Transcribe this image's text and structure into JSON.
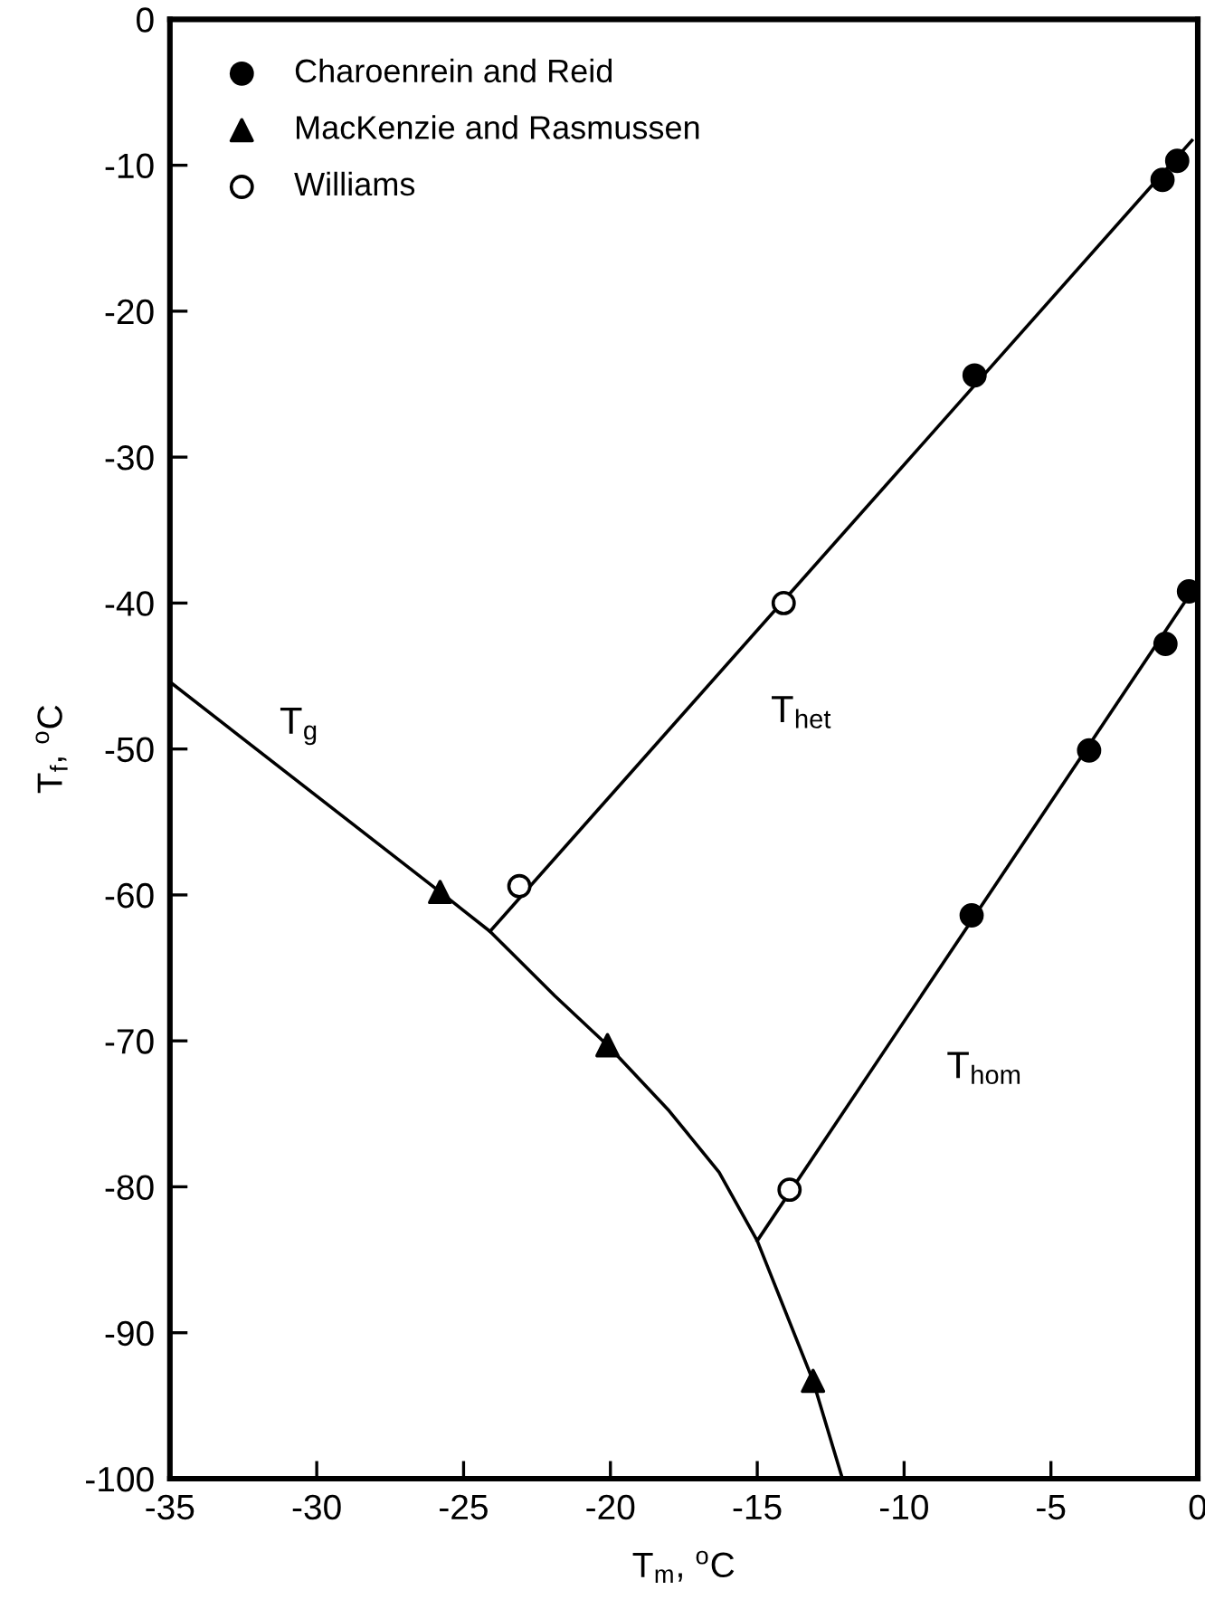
{
  "chart_data": {
    "type": "line",
    "xlabel": "T$_{m}$, $^{o}$C",
    "ylabel": "T$_{f}$, $^{o}$C",
    "xlim": [
      -35,
      0
    ],
    "ylim": [
      -100,
      0
    ],
    "xticks": [
      -35,
      -30,
      -25,
      -20,
      -15,
      -10,
      -5,
      0
    ],
    "yticks": [
      -100,
      -90,
      -80,
      -70,
      -60,
      -50,
      -40,
      -30,
      -20,
      -10,
      0
    ],
    "grid": false,
    "legend": "top left",
    "series": [
      {
        "name": "T$_{g}$",
        "color": "#000000",
        "x": [
          -35,
          -25.8,
          -24.1,
          -21.9,
          -20.1,
          -18.0,
          -16.3,
          -15.0,
          -13.1,
          -12.1
        ],
        "values": [
          -45.4,
          -59.8,
          -62.5,
          -66.9,
          -70.3,
          -74.8,
          -79.0,
          -83.7,
          -93.3,
          -100
        ]
      },
      {
        "name": "T$_{het}$",
        "color": "#000000",
        "x": [
          -24.1,
          -0.2
        ],
        "values": [
          -62.5,
          -8.3
        ]
      },
      {
        "name": "T$_{hom}$",
        "color": "#000000",
        "x": [
          -15.0,
          0
        ],
        "values": [
          -83.7,
          -38.6
        ]
      },
      {
        "type": "scatter",
        "name": "Charoenrein and Reid",
        "marker": "circle",
        "color": "#000000",
        "x": [
          -1.2,
          -0.7,
          -7.6,
          -0.3,
          -1.1,
          -3.7,
          -7.7
        ],
        "values": [
          -11.0,
          -9.7,
          -24.4,
          -39.2,
          -42.8,
          -50.1,
          -61.4
        ]
      },
      {
        "type": "scatter",
        "name": "MacKenzie and Rasmussen",
        "marker": "triangle",
        "color": "#000000",
        "x": [
          -25.8,
          -20.1,
          -13.1
        ],
        "values": [
          -59.8,
          -70.3,
          -93.3
        ]
      },
      {
        "type": "scatter",
        "name": "Williams",
        "marker": "circle",
        "color": "#ffffff",
        "x": [
          -23.1,
          -14.1,
          -13.9
        ],
        "values": [
          -59.4,
          -40.0,
          -80.2
        ]
      }
    ]
  }
}
